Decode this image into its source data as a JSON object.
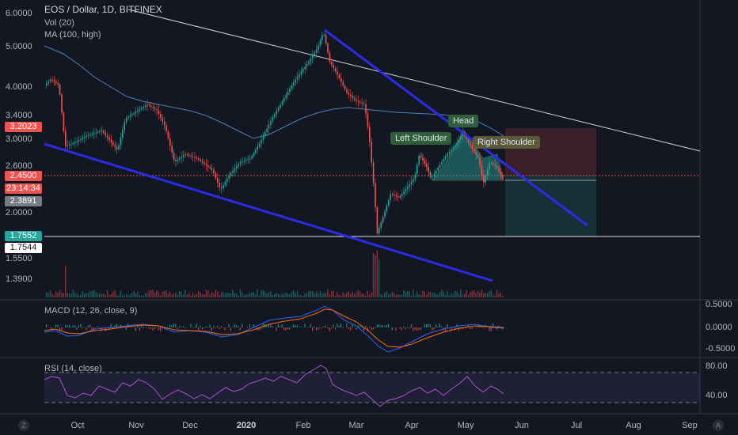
{
  "header": {
    "symbol_line": "EOS / Dollar, 1D, BITFINEX",
    "volume_indicator": "Vol (20)",
    "ma_indicator": "MA (100, high)"
  },
  "price_axis": {
    "ticks": [
      "6.0000",
      "5.0000",
      "4.0000",
      "3.4000",
      "3.0000",
      "2.6000",
      "2.0000",
      "1.5500",
      "1.3900"
    ]
  },
  "price_tags": [
    {
      "name": "ma-value-tag",
      "text": "3.2023",
      "bg": "#ef5350",
      "fg": "#ffffff"
    },
    {
      "name": "last-price-tag",
      "text": "2.4500",
      "bg": "#ef5350",
      "fg": "#ffffff"
    },
    {
      "name": "countdown-tag",
      "text": "23:14:34",
      "bg": "#ef5350",
      "fg": "#ffffff"
    },
    {
      "name": "stop-price-tag",
      "text": "2.3891",
      "bg": "#787b86",
      "fg": "#ffffff"
    },
    {
      "name": "target-price-tag",
      "text": "1.7552",
      "bg": "#26a69a",
      "fg": "#ffffff"
    },
    {
      "name": "line-price-tag",
      "text": "1.7544",
      "bg": "#ffffff",
      "fg": "#131722"
    }
  ],
  "macd_pane": {
    "label": "MACD (12, 26, close, 9)",
    "ticks": [
      "0.5000",
      "0.0000",
      "-0.5000"
    ]
  },
  "rsi_pane": {
    "label": "RSI (14, close)",
    "ticks": [
      "80.00",
      "40.00"
    ]
  },
  "time_axis": {
    "ticks": [
      "Oct",
      "Nov",
      "Dec",
      "2020",
      "Feb",
      "Mar",
      "Apr",
      "May",
      "Jun",
      "Jul",
      "Aug",
      "Sep"
    ]
  },
  "annotations": {
    "left_shoulder": "Left Shoulder",
    "head": "Head",
    "right_shoulder": "Right Shoulder"
  },
  "corner_buttons": {
    "left": "Z",
    "right": "A"
  },
  "colors": {
    "background": "#131722",
    "up_candle": "#26a69a",
    "down_candle": "#ef5350",
    "trendline_blue": "#2b2be8",
    "ma_line": "#4a80b8",
    "rsi_line": "#a656c9",
    "macd_line": "#2962ff",
    "signal_line": "#ff6d00"
  },
  "chart_data": {
    "type": "candlestick",
    "title": "EOS / Dollar, 1D, BITFINEX",
    "x": [
      "Oct",
      "Nov",
      "Dec",
      "2020",
      "Feb",
      "Mar",
      "Apr",
      "May",
      "Jun",
      "Jul",
      "Aug",
      "Sep"
    ],
    "y_axis_scale": "log",
    "series": [
      {
        "name": "MA (100, high)",
        "type": "line"
      },
      {
        "name": "Vol (20)",
        "type": "bar"
      }
    ],
    "key_levels": {
      "last_price": 2.45,
      "ma_value": 3.2023,
      "stop": 2.3891,
      "target": 1.7552,
      "horizontal_line": 1.7544
    },
    "pattern": [
      "Left Shoulder",
      "Head",
      "Right Shoulder"
    ]
  }
}
